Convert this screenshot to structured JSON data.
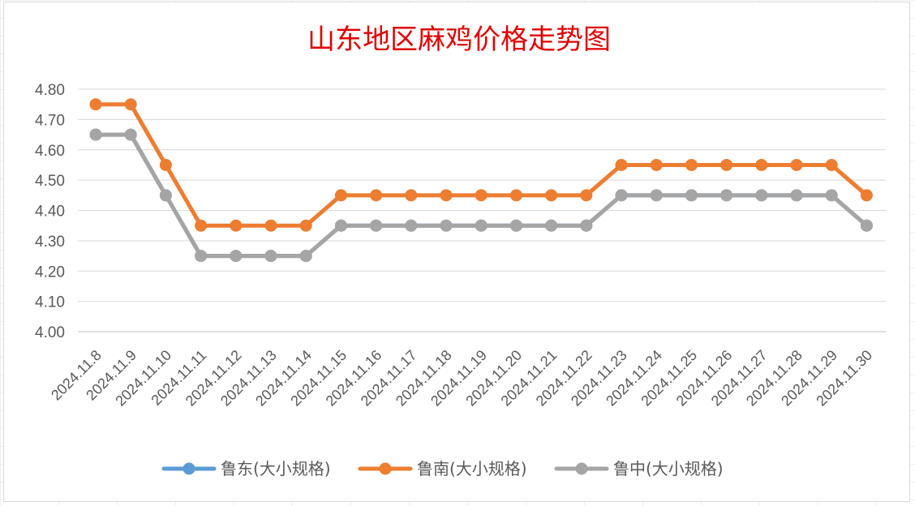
{
  "chart_data": {
    "type": "line",
    "title": "山东地区麻鸡价格走势图",
    "xlabel": "",
    "ylabel": "",
    "ylim": [
      4.0,
      4.8
    ],
    "yticks": [
      "4.00",
      "4.10",
      "4.20",
      "4.30",
      "4.40",
      "4.50",
      "4.60",
      "4.70",
      "4.80"
    ],
    "categories": [
      "2024.11.8",
      "2024.11.9",
      "2024.11.10",
      "2024.11.11",
      "2024.11.12",
      "2024.11.13",
      "2024.11.14",
      "2024.11.15",
      "2024.11.16",
      "2024.11.17",
      "2024.11.18",
      "2024.11.19",
      "2024.11.20",
      "2024.11.21",
      "2024.11.22",
      "2024.11.23",
      "2024.11.24",
      "2024.11.25",
      "2024.11.26",
      "2024.11.27",
      "2024.11.28",
      "2024.11.29",
      "2024.11.30"
    ],
    "grid": true,
    "legend_position": "bottom",
    "series": [
      {
        "name": "鲁东(大小规格)",
        "color": "#5b9bd5",
        "values": [
          4.65,
          4.65,
          4.45,
          4.25,
          4.25,
          4.25,
          4.25,
          4.35,
          4.35,
          4.35,
          4.35,
          4.35,
          4.35,
          4.35,
          4.35,
          4.45,
          4.45,
          4.45,
          4.45,
          4.45,
          4.45,
          4.45,
          4.35
        ]
      },
      {
        "name": "鲁南(大小规格)",
        "color": "#ed7d31",
        "values": [
          4.75,
          4.75,
          4.55,
          4.35,
          4.35,
          4.35,
          4.35,
          4.45,
          4.45,
          4.45,
          4.45,
          4.45,
          4.45,
          4.45,
          4.45,
          4.55,
          4.55,
          4.55,
          4.55,
          4.55,
          4.55,
          4.55,
          4.45
        ]
      },
      {
        "name": "鲁中(大小规格)",
        "color": "#a5a5a5",
        "values": [
          4.65,
          4.65,
          4.45,
          4.25,
          4.25,
          4.25,
          4.25,
          4.35,
          4.35,
          4.35,
          4.35,
          4.35,
          4.35,
          4.35,
          4.35,
          4.45,
          4.45,
          4.45,
          4.45,
          4.45,
          4.45,
          4.45,
          4.35
        ]
      }
    ]
  }
}
